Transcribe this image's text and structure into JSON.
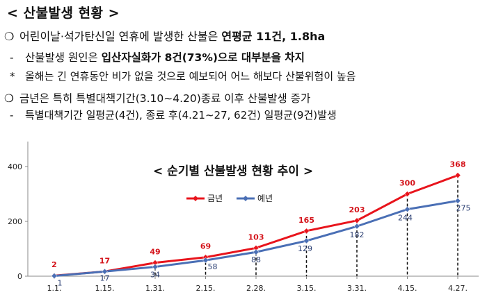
{
  "header": {
    "title": "< 산불발생  현황 >"
  },
  "bullets": {
    "b1_mark": "❍",
    "b1_pre": "어린이날·석가탄신일 연휴에 발생한 산불은 ",
    "b1_bold": "연평균 11건, 1.8ha",
    "b2_mark": "-",
    "b2_pre": "산불발생 원인은 ",
    "b2_bold": "입산자실화가 8건(73%)으로 대부분을 차지",
    "b3_mark": "*",
    "b3_text": "올해는 긴 연휴동안 비가 없을 것으로 예보되어 어느 해보다 산불위험이 높음",
    "b4_mark": "❍",
    "b4_text": "금년은 특히 특별대책기간(3.10∼4.20)종료 이후 산불발생 증가",
    "b5_mark": "-",
    "b5_text": "특별대책기간 일평균(4건), 종료 후(4.21∼27, 62건) 일평균(9건)발생"
  },
  "chart_data": {
    "type": "line",
    "title": "< 순기별 산불발생 현황 추이 >",
    "categories": [
      "1.1.",
      "1.15.",
      "1.31.",
      "2.15.",
      "2.28.",
      "3.15.",
      "3.31.",
      "4.15.",
      "4.27."
    ],
    "series": [
      {
        "name": "금년",
        "color": "#e8141c",
        "values": [
          2,
          17,
          49,
          69,
          103,
          165,
          203,
          300,
          368
        ]
      },
      {
        "name": "예년",
        "color": "#4a6fb5",
        "values": [
          1,
          17,
          34,
          58,
          88,
          129,
          182,
          244,
          275
        ]
      }
    ],
    "ylim": [
      0,
      400
    ],
    "yticks": [
      0,
      200,
      400
    ],
    "xlabel": "",
    "ylabel": "",
    "legend": "top-center",
    "grid": false
  }
}
